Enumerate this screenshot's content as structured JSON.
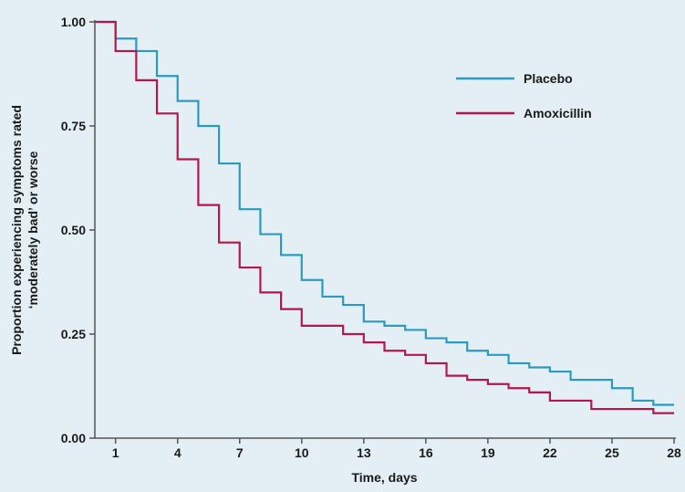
{
  "colors": {
    "background": "#e3eff4",
    "axis": "#555555",
    "placebo": "#2a9bbf",
    "amoxicillin": "#b5174a"
  },
  "chart_data": {
    "type": "line",
    "step": true,
    "xlabel": "Time, days",
    "ylabel_lines": [
      "Proportion experiencing symptoms rated",
      "‘moderately bad’ or worse"
    ],
    "xlim": [
      0,
      28
    ],
    "ylim": [
      0,
      1
    ],
    "x_ticks": [
      1,
      4,
      7,
      10,
      13,
      16,
      19,
      22,
      25,
      28
    ],
    "y_ticks": [
      0,
      0.25,
      0.5,
      0.75,
      1.0
    ],
    "y_tick_labels": [
      "0.00",
      "0.25",
      "0.50",
      "0.75",
      "1.00"
    ],
    "grid": false,
    "legend_position": "top-right",
    "series": [
      {
        "name": "Placebo",
        "color": "#2a9bbf",
        "x": [
          0,
          1,
          2,
          3,
          4,
          5,
          6,
          7,
          8,
          9,
          10,
          11,
          12,
          13,
          14,
          15,
          16,
          17,
          18,
          19,
          20,
          21,
          22,
          23,
          24,
          25,
          26,
          27,
          28
        ],
        "y": [
          1.0,
          0.96,
          0.93,
          0.87,
          0.81,
          0.75,
          0.66,
          0.55,
          0.49,
          0.44,
          0.38,
          0.34,
          0.32,
          0.28,
          0.27,
          0.26,
          0.24,
          0.23,
          0.21,
          0.2,
          0.18,
          0.17,
          0.16,
          0.14,
          0.14,
          0.12,
          0.09,
          0.08,
          0.08
        ]
      },
      {
        "name": "Amoxicillin",
        "color": "#b5174a",
        "x": [
          0,
          1,
          2,
          3,
          4,
          5,
          6,
          7,
          8,
          9,
          10,
          11,
          12,
          13,
          14,
          15,
          16,
          17,
          18,
          19,
          20,
          21,
          22,
          23,
          24,
          25,
          26,
          27,
          28
        ],
        "y": [
          1.0,
          0.93,
          0.86,
          0.78,
          0.67,
          0.56,
          0.47,
          0.41,
          0.35,
          0.31,
          0.27,
          0.27,
          0.25,
          0.23,
          0.21,
          0.2,
          0.18,
          0.15,
          0.14,
          0.13,
          0.12,
          0.11,
          0.09,
          0.09,
          0.07,
          0.07,
          0.07,
          0.06,
          0.06
        ]
      }
    ]
  }
}
